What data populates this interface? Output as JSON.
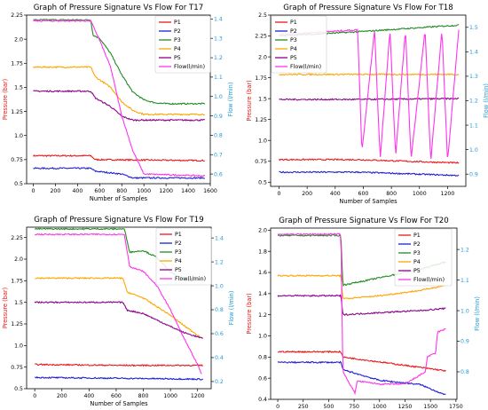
{
  "colors": {
    "P1": "#e8191b",
    "P2": "#1f1fd6",
    "P3": "#228b22",
    "P4": "#ffa500",
    "P5": "#8b008b",
    "Flow": "#ff33ee",
    "pressure_axis": "#e8191b",
    "flow_axis": "#1f9ad6"
  },
  "chart_data": [
    {
      "type": "line",
      "title": "Graph of Pressure Signature Vs Flow For T17",
      "xlabel": "Number of Samples",
      "ylabel": "Pressure (bar)",
      "ylabel_right": "Flow (l/min)",
      "xlim": [
        -60,
        1600
      ],
      "ylim": [
        0.5,
        2.25
      ],
      "ylim_right": [
        0.55,
        1.42
      ],
      "xticks": [
        0,
        200,
        400,
        600,
        800,
        1000,
        1200,
        1400,
        1600
      ],
      "yticks": [
        0.5,
        0.75,
        1.0,
        1.25,
        1.5,
        1.75,
        2.0,
        2.25
      ],
      "yticks_right": [
        0.6,
        0.7,
        0.8,
        0.9,
        1.0,
        1.1,
        1.2,
        1.3,
        1.4
      ],
      "legend_position": "top-right",
      "series": [
        {
          "name": "P1",
          "axis": "left",
          "x": [
            0,
            520,
            560,
            1550
          ],
          "y": [
            0.79,
            0.79,
            0.75,
            0.74
          ]
        },
        {
          "name": "P2",
          "axis": "left",
          "x": [
            0,
            520,
            560,
            800,
            900,
            1550
          ],
          "y": [
            0.66,
            0.66,
            0.63,
            0.6,
            0.56,
            0.56
          ]
        },
        {
          "name": "P3",
          "axis": "left",
          "x": [
            0,
            520,
            540,
            600,
            700,
            800,
            900,
            1000,
            1100,
            1200,
            1550
          ],
          "y": [
            2.2,
            2.2,
            2.04,
            2.01,
            1.85,
            1.63,
            1.45,
            1.37,
            1.34,
            1.33,
            1.33
          ]
        },
        {
          "name": "P4",
          "axis": "left",
          "x": [
            0,
            520,
            560,
            700,
            800,
            900,
            1000,
            1550
          ],
          "y": [
            1.71,
            1.71,
            1.61,
            1.5,
            1.35,
            1.26,
            1.22,
            1.22
          ]
        },
        {
          "name": "P5",
          "axis": "left",
          "x": [
            0,
            520,
            560,
            700,
            800,
            900,
            1550
          ],
          "y": [
            1.46,
            1.46,
            1.39,
            1.3,
            1.2,
            1.16,
            1.16
          ]
        },
        {
          "name": "Flow(l/min)",
          "axis": "right",
          "x": [
            0,
            520,
            600,
            700,
            800,
            900,
            1000,
            1550
          ],
          "y": [
            1.39,
            1.39,
            1.29,
            1.15,
            0.9,
            0.72,
            0.6,
            0.59
          ]
        }
      ]
    },
    {
      "type": "line",
      "title": "Graph of Pressure Signature Vs Flow For T18",
      "xlabel": "Number of Samples",
      "ylabel": "Pressure (bar)",
      "ylabel_right": "Flow (l/min)",
      "xlim": [
        -60,
        1330
      ],
      "ylim": [
        0.45,
        2.5
      ],
      "ylim_right": [
        0.85,
        1.55
      ],
      "xticks": [
        0,
        200,
        400,
        600,
        800,
        1000,
        1200
      ],
      "yticks": [
        0.5,
        0.75,
        1.0,
        1.25,
        1.5,
        1.75,
        2.0,
        2.25,
        2.5
      ],
      "yticks_right": [
        0.9,
        1.0,
        1.1,
        1.2,
        1.3,
        1.4,
        1.5
      ],
      "legend_position": "top-left",
      "series": [
        {
          "name": "P1",
          "axis": "left",
          "x": [
            0,
            560,
            1280
          ],
          "y": [
            0.77,
            0.77,
            0.73
          ]
        },
        {
          "name": "P2",
          "axis": "left",
          "x": [
            0,
            560,
            1280
          ],
          "y": [
            0.62,
            0.62,
            0.58
          ]
        },
        {
          "name": "P3",
          "axis": "left",
          "x": [
            0,
            560,
            1280
          ],
          "y": [
            2.25,
            2.3,
            2.38
          ]
        },
        {
          "name": "P4",
          "axis": "left",
          "x": [
            0,
            1280
          ],
          "y": [
            1.79,
            1.79
          ]
        },
        {
          "name": "P5",
          "axis": "left",
          "x": [
            0,
            560,
            1280
          ],
          "y": [
            1.49,
            1.49,
            1.5
          ]
        },
        {
          "name": "Flow(l/min)",
          "axis": "right",
          "x": [
            0,
            560,
            590,
            680,
            720,
            790,
            830,
            900,
            940,
            1040,
            1080,
            1160,
            1200,
            1280
          ],
          "y": [
            1.47,
            1.49,
            0.99,
            1.49,
            0.96,
            1.49,
            0.97,
            1.49,
            0.96,
            1.49,
            0.95,
            1.49,
            0.95,
            1.49
          ]
        }
      ]
    },
    {
      "type": "line",
      "title": "Graph of Pressure Signature Vs Flow For T19",
      "xlabel": "Number of Samples",
      "ylabel": "Pressure (bar)",
      "ylabel_right": "Flow (l/min)",
      "xlim": [
        -60,
        1300
      ],
      "ylim": [
        0.5,
        2.37
      ],
      "ylim_right": [
        0.14,
        1.49
      ],
      "xticks": [
        0,
        200,
        400,
        600,
        800,
        1000,
        1200
      ],
      "yticks": [
        0.5,
        0.75,
        1.0,
        1.25,
        1.5,
        1.75,
        2.0,
        2.25
      ],
      "yticks_right": [
        0.2,
        0.4,
        0.6,
        0.8,
        1.0,
        1.2,
        1.4
      ],
      "legend_position": "top-right",
      "series": [
        {
          "name": "P1",
          "axis": "left",
          "x": [
            0,
            650,
            1240
          ],
          "y": [
            0.78,
            0.77,
            0.77
          ]
        },
        {
          "name": "P2",
          "axis": "left",
          "x": [
            0,
            650,
            1240
          ],
          "y": [
            0.63,
            0.62,
            0.61
          ]
        },
        {
          "name": "P3",
          "axis": "left",
          "x": [
            0,
            660,
            700,
            800,
            900,
            1000,
            1100,
            1240
          ],
          "y": [
            2.35,
            2.35,
            2.08,
            2.1,
            2.02,
            1.85,
            1.76,
            1.76
          ]
        },
        {
          "name": "P4",
          "axis": "left",
          "x": [
            0,
            650,
            680,
            800,
            1000,
            1100,
            1220
          ],
          "y": [
            1.78,
            1.78,
            1.62,
            1.55,
            1.35,
            1.23,
            1.1
          ]
        },
        {
          "name": "P5",
          "axis": "left",
          "x": [
            0,
            650,
            680,
            800,
            1000,
            1100,
            1240
          ],
          "y": [
            1.5,
            1.5,
            1.41,
            1.37,
            1.22,
            1.15,
            1.08
          ]
        },
        {
          "name": "Flow(l/min)",
          "axis": "right",
          "x": [
            0,
            660,
            700,
            800,
            900,
            1000,
            1100,
            1200,
            1230
          ],
          "y": [
            1.43,
            1.43,
            1.16,
            1.12,
            1.0,
            0.8,
            0.56,
            0.34,
            0.26
          ]
        }
      ]
    },
    {
      "type": "line",
      "title": "Graph of Pressure Signature Vs Flow For T20",
      "xlabel": "Number of Samples",
      "ylabel": "Pressure (bar)",
      "ylabel_right": "Flow (l/min)",
      "xlim": [
        -70,
        1760
      ],
      "ylim": [
        0.4,
        2.02
      ],
      "ylim_right": [
        0.71,
        1.27
      ],
      "xticks": [
        0,
        250,
        500,
        750,
        1000,
        1250,
        1500,
        1750
      ],
      "yticks": [
        0.4,
        0.6,
        0.8,
        1.0,
        1.2,
        1.4,
        1.6,
        1.8,
        2.0
      ],
      "yticks_right": [
        0.8,
        0.9,
        1.0,
        1.1,
        1.2
      ],
      "legend_position": "top-right",
      "series": [
        {
          "name": "P1",
          "axis": "left",
          "x": [
            0,
            620,
            640,
            1650
          ],
          "y": [
            0.85,
            0.85,
            0.8,
            0.67
          ]
        },
        {
          "name": "P2",
          "axis": "left",
          "x": [
            0,
            620,
            640,
            1000,
            1400,
            1650
          ],
          "y": [
            0.75,
            0.75,
            0.68,
            0.58,
            0.54,
            0.44
          ]
        },
        {
          "name": "P3",
          "axis": "left",
          "x": [
            0,
            620,
            640,
            1000,
            1400,
            1650
          ],
          "y": [
            1.95,
            1.95,
            1.48,
            1.55,
            1.63,
            1.7
          ]
        },
        {
          "name": "P4",
          "axis": "left",
          "x": [
            0,
            620,
            640,
            1000,
            1400,
            1650
          ],
          "y": [
            1.57,
            1.57,
            1.35,
            1.38,
            1.43,
            1.48
          ]
        },
        {
          "name": "P5",
          "axis": "left",
          "x": [
            0,
            620,
            640,
            1000,
            1400,
            1650
          ],
          "y": [
            1.38,
            1.38,
            1.2,
            1.22,
            1.24,
            1.26
          ]
        },
        {
          "name": "Flow(l/min)",
          "axis": "right",
          "x": [
            0,
            620,
            640,
            760,
            780,
            1000,
            1250,
            1450,
            1470,
            1550,
            1570,
            1650
          ],
          "y": [
            1.25,
            1.25,
            0.8,
            0.73,
            0.77,
            0.76,
            0.76,
            0.8,
            0.85,
            0.86,
            0.93,
            0.94
          ]
        }
      ]
    }
  ]
}
